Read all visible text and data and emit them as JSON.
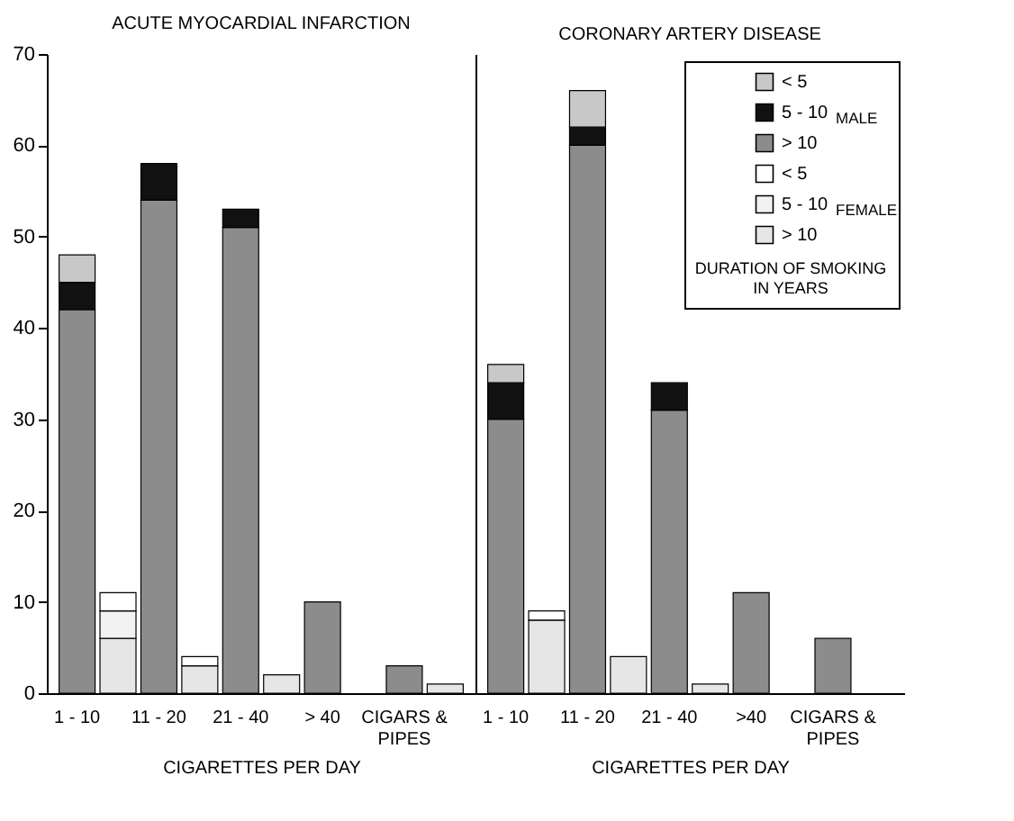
{
  "chart_data": [
    {
      "type": "bar",
      "title": "ACUTE MYOCARDIAL INFARCTION",
      "xlabel": "CIGARETTES PER DAY",
      "stacked": true,
      "categories": [
        "1 - 10",
        null,
        "11 - 20",
        null,
        "21 - 40",
        null,
        "> 40",
        null,
        "CIGARS & PIPES",
        null
      ],
      "ylim": [
        0,
        70
      ],
      "yticks": [
        0,
        10,
        20,
        30,
        40,
        50,
        60,
        70
      ],
      "grid": false,
      "legend": false,
      "series": [
        {
          "colors": [
            "#8c8c8c",
            "#e6e6e6",
            "#8c8c8c",
            "#e6e6e6",
            "#8c8c8c",
            "#e6e6e6",
            "#8c8c8c",
            "#e6e6e6",
            "#8c8c8c",
            "#e6e6e6"
          ],
          "values": [
            42,
            6,
            54,
            3,
            51,
            2,
            10,
            0,
            3,
            1
          ]
        },
        {
          "colors": [
            "#111111",
            "#f2f2f2",
            "#111111",
            "#f2f2f2",
            "#111111",
            "#f2f2f2",
            "#111111",
            "#f2f2f2",
            "#111111",
            "#f2f2f2"
          ],
          "values": [
            3,
            3,
            4,
            0,
            2,
            0,
            0,
            0,
            0,
            0
          ]
        },
        {
          "colors": [
            "#c8c8c8",
            "#ffffff",
            "#c8c8c8",
            "#ffffff",
            "#c8c8c8",
            "#ffffff",
            "#c8c8c8",
            "#ffffff",
            "#c8c8c8",
            "#ffffff"
          ],
          "values": [
            3,
            2,
            0,
            1,
            0,
            0,
            0,
            0,
            0,
            0
          ]
        }
      ]
    },
    {
      "type": "bar",
      "title": "CORONARY ARTERY DISEASE",
      "xlabel": "CIGARETTES PER DAY",
      "legend_title": "DURATION OF SMOKING IN YEARS",
      "annotations": [
        "MALE",
        "FEMALE"
      ],
      "stacked": true,
      "categories": [
        "1 - 10",
        null,
        "11 - 20",
        null,
        "21 - 40",
        null,
        ">40",
        null,
        "CIGARS & PIPES",
        null
      ],
      "ylim": [
        0,
        70
      ],
      "yticks": [
        0,
        10,
        20,
        30,
        40,
        50,
        60,
        70
      ],
      "tick_labels": "x",
      "grid": false,
      "legend": "top right",
      "series": [
        {
          "name": "> 10",
          "colors": [
            "#8c8c8c",
            "#e6e6e6",
            "#8c8c8c",
            "#e6e6e6",
            "#8c8c8c",
            "#e6e6e6",
            "#8c8c8c",
            "#e6e6e6",
            "#8c8c8c",
            "#e6e6e6"
          ],
          "values": [
            30,
            8,
            60,
            4,
            31,
            1,
            11,
            0,
            6,
            0
          ]
        },
        {
          "name": "5 - 10",
          "colors": [
            "#111111",
            "#f2f2f2",
            "#111111",
            "#f2f2f2",
            "#111111",
            "#f2f2f2",
            "#111111",
            "#f2f2f2",
            "#111111",
            "#f2f2f2"
          ],
          "values": [
            4,
            0,
            2,
            0,
            3,
            0,
            0,
            0,
            0,
            0
          ]
        },
        {
          "name": "< 5",
          "colors": [
            "#c8c8c8",
            "#ffffff",
            "#c8c8c8",
            "#ffffff",
            "#c8c8c8",
            "#ffffff",
            "#c8c8c8",
            "#ffffff",
            "#c8c8c8",
            "#ffffff"
          ],
          "values": [
            2,
            1,
            4,
            0,
            null,
            0,
            0,
            0,
            0,
            0
          ]
        }
      ]
    }
  ]
}
